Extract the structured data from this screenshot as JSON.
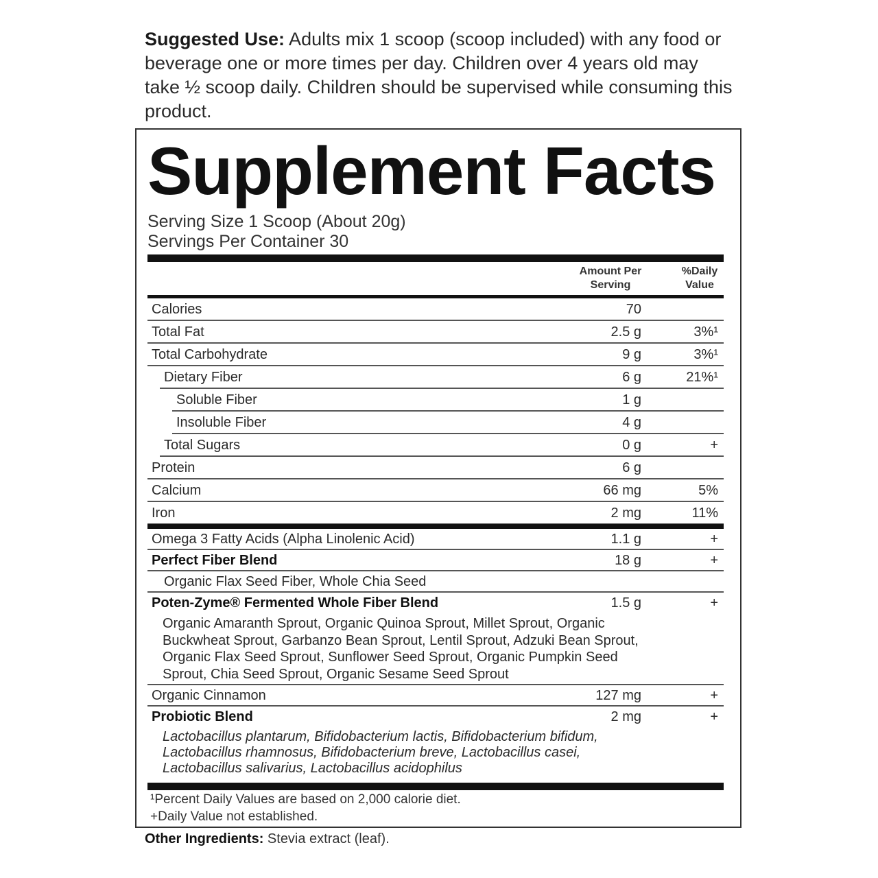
{
  "suggested_use": {
    "label": "Suggested Use:",
    "text": " Adults mix 1 scoop (scoop included) with any food or beverage one or more times per day. Children over 4 years old may take ½ scoop daily. Children should be supervised while consuming this product."
  },
  "panel": {
    "title": "Supplement Facts",
    "serving_size": "Serving Size 1 Scoop (About 20g)",
    "servings_per_container": "Servings Per Container 30",
    "col_amount": "Amount Per Serving",
    "col_dv": "%Daily Value",
    "rows": [
      {
        "label": "Calories",
        "amount": "70",
        "dv": "",
        "indent": 0
      },
      {
        "label": "Total Fat",
        "amount": "2.5 g",
        "dv": "3%¹",
        "indent": 0
      },
      {
        "label": "Total Carbohydrate",
        "amount": "9 g",
        "dv": "3%¹",
        "indent": 0
      },
      {
        "label": "Dietary Fiber",
        "amount": "6 g",
        "dv": "21%¹",
        "indent": 1
      },
      {
        "label": "Soluble Fiber",
        "amount": "1 g",
        "dv": "",
        "indent": 2
      },
      {
        "label": "Insoluble Fiber",
        "amount": "4 g",
        "dv": "",
        "indent": 2
      },
      {
        "label": "Total Sugars",
        "amount": "0 g",
        "dv": "+",
        "indent": 1
      },
      {
        "label": "Protein",
        "amount": "6 g",
        "dv": "",
        "indent": 0
      },
      {
        "label": "Calcium",
        "amount": "66 mg",
        "dv": "5%",
        "indent": 0
      },
      {
        "label": "Iron",
        "amount": "2 mg",
        "dv": "11%",
        "indent": 0
      }
    ],
    "rows2": [
      {
        "label": "Omega 3 Fatty Acids (Alpha Linolenic Acid)",
        "amount": "1.1 g",
        "dv": "+",
        "indent": 0
      },
      {
        "label": "Perfect Fiber Blend",
        "amount": "18 g",
        "dv": "+",
        "indent": 0,
        "bold": true
      },
      {
        "label": "Organic Flax Seed Fiber, Whole Chia Seed",
        "amount": "",
        "dv": "",
        "indent": 1,
        "fullline": true
      },
      {
        "label": "Poten-Zyme® Fermented Whole Fiber Blend",
        "amount": "1.5 g",
        "dv": "+",
        "indent": 0,
        "bold": true,
        "noline": true
      },
      {
        "para": "Organic Amaranth Sprout, Organic Quinoa Sprout, Millet Sprout, Organic Buckwheat Sprout, Garbanzo Bean Sprout, Lentil Sprout, Adzuki Bean Sprout, Organic Flax Seed Sprout, Sunflower Seed Sprout, Organic Pumpkin Seed Sprout, Chia Seed Sprout, Organic Sesame Seed Sprout"
      },
      {
        "label": "Organic Cinnamon",
        "amount": "127 mg",
        "dv": "+",
        "indent": 0
      },
      {
        "label": "Probiotic Blend",
        "amount": "2 mg",
        "dv": "+",
        "indent": 0,
        "bold": true,
        "noline": true
      },
      {
        "para": "Lactobacillus plantarum, Bifidobacterium lactis, Bifidobacterium bifidum, Lactobacillus rhamnosus, Bifidobacterium breve, Lactobacillus casei, Lactobacillus salivarius, Lactobacillus acidophilus",
        "italic": true
      }
    ],
    "footnote1": "¹Percent Daily Values are based on 2,000 calorie diet.",
    "footnote2": "+Daily Value not established."
  },
  "other_ingredients": {
    "label": "Other Ingredients:",
    "text": " Stevia extract (leaf)."
  }
}
